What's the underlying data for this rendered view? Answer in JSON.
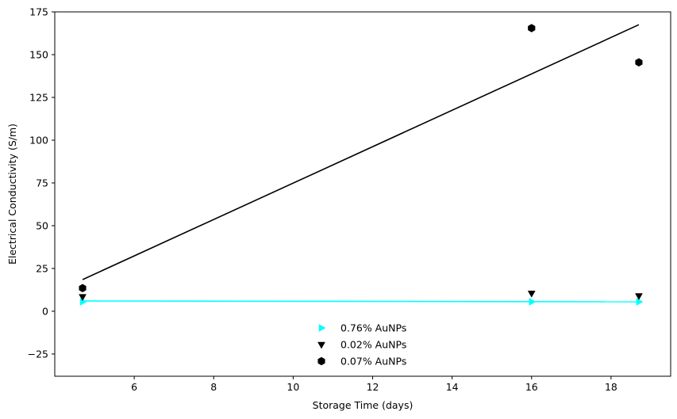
{
  "chart_data": {
    "type": "scatter",
    "xlabel": "Storage Time (days)",
    "ylabel": "Electrical Conductivity (S/m)",
    "xlim": [
      4.0,
      19.5
    ],
    "ylim": [
      -38,
      175
    ],
    "xticks": [
      6,
      8,
      10,
      12,
      14,
      16,
      18
    ],
    "yticks": [
      -25,
      0,
      25,
      50,
      75,
      100,
      125,
      150,
      175
    ],
    "grid": false,
    "legend_position": "lower-center",
    "series": [
      {
        "name": "0.76% AuNPs",
        "marker": "triangle-right",
        "color": "#00ffff",
        "x": [
          4.7,
          16.0,
          18.7
        ],
        "y": [
          5.5,
          5.5,
          5.5
        ],
        "fit": {
          "x": [
            4.7,
            18.7
          ],
          "y": [
            6.0,
            5.5
          ],
          "color": "#00ffff"
        }
      },
      {
        "name": "0.02% AuNPs",
        "marker": "triangle-down",
        "color": "#000000",
        "x": [
          4.7,
          16.0,
          18.7
        ],
        "y": [
          8.5,
          10.5,
          9.0
        ]
      },
      {
        "name": "0.07% AuNPs",
        "marker": "hexagon",
        "color": "#000000",
        "x": [
          4.7,
          16.0,
          18.7
        ],
        "y": [
          13.5,
          165.5,
          145.5
        ],
        "fit": {
          "x": [
            4.7,
            18.7
          ],
          "y": [
            18.5,
            167.5
          ],
          "color": "#000000"
        }
      }
    ]
  }
}
